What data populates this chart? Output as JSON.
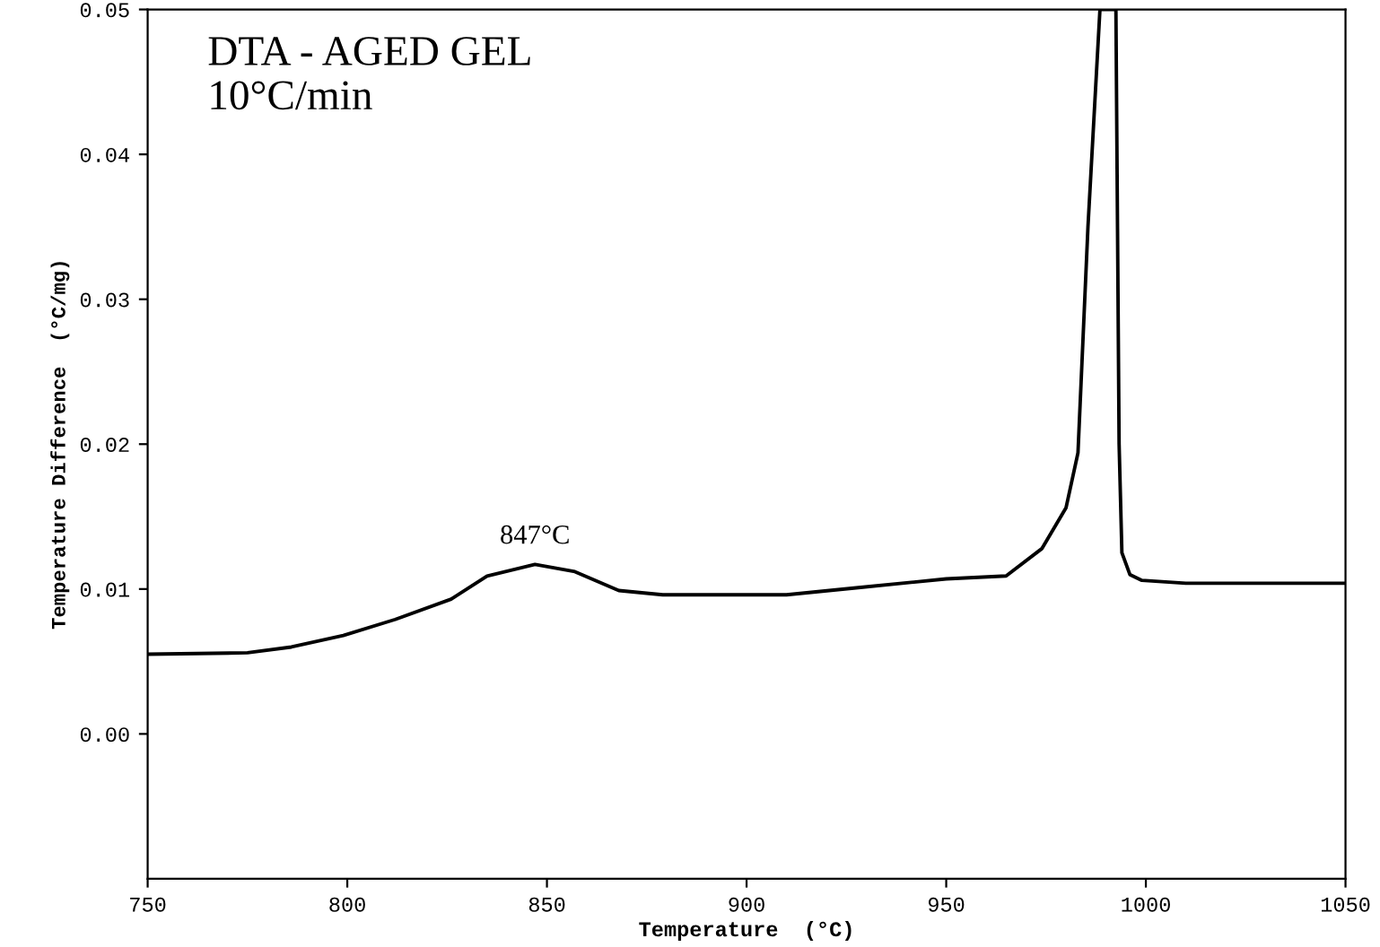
{
  "chart_data": {
    "type": "line",
    "title": "DTA - AGED GEL\n10°C/min",
    "xlabel": "Temperature  (°C)",
    "ylabel": "Temperature Difference  (°C/mg)",
    "xlim": [
      750,
      1050
    ],
    "ylim": [
      -0.01,
      0.05
    ],
    "xticks": [
      750,
      800,
      850,
      900,
      950,
      1000,
      1050
    ],
    "yticks": [
      {
        "value": 0,
        "label": "0.00"
      },
      {
        "value": 0.01,
        "label": "0.01"
      },
      {
        "value": 0.02,
        "label": "0.02"
      },
      {
        "value": 0.03,
        "label": "0.03"
      },
      {
        "value": 0.04,
        "label": "0.04"
      },
      {
        "value": 0.05,
        "label": "0.05"
      }
    ],
    "grid": false,
    "legend": false,
    "marker": "none",
    "line_style": "solid",
    "series": [
      {
        "color": "#000000",
        "x": [
          750,
          775,
          786,
          799,
          812,
          826,
          835,
          847,
          857,
          868,
          879,
          910,
          928,
          950,
          965,
          974,
          980,
          983,
          985.5,
          988.5,
          992.5,
          993.3,
          994,
          996,
          999,
          1010,
          1050
        ],
        "values": [
          0.0055,
          0.0056,
          0.006,
          0.0068,
          0.0079,
          0.0093,
          0.0109,
          0.0117,
          0.0112,
          0.0099,
          0.0096,
          0.0096,
          0.0101,
          0.0107,
          0.0109,
          0.0128,
          0.0156,
          0.0194,
          0.035,
          0.05,
          0.05,
          0.02,
          0.0125,
          0.011,
          0.0106,
          0.0104,
          0.0104
        ]
      }
    ],
    "annotations": [
      {
        "text": "847°C",
        "x": 847,
        "y": 0.0117
      }
    ]
  }
}
